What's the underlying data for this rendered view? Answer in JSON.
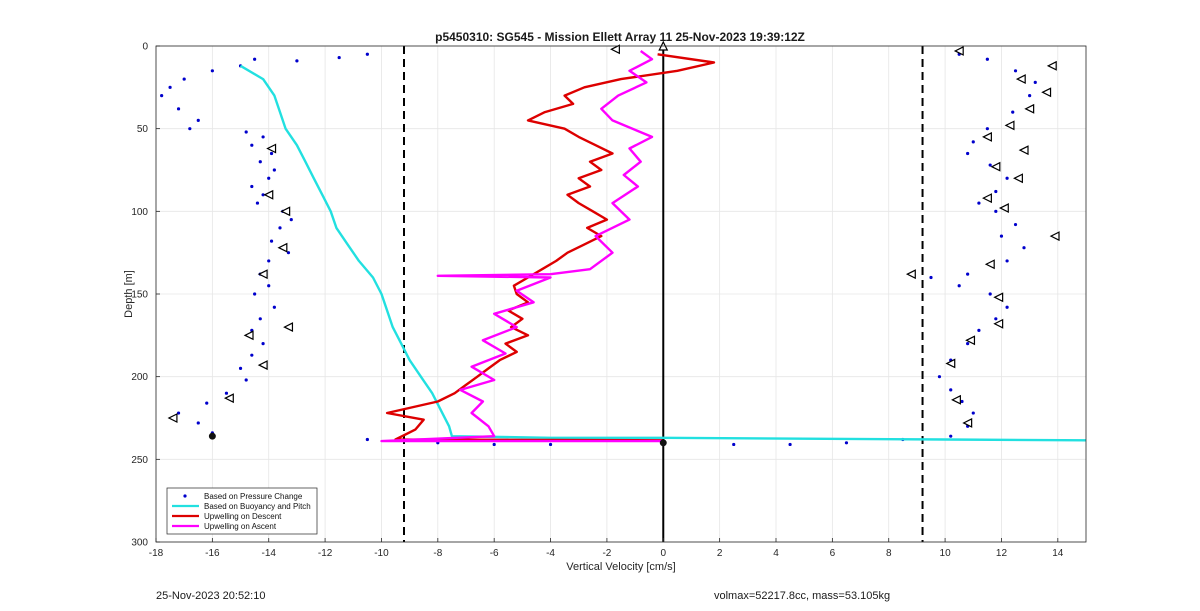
{
  "chart_data": {
    "type": "line",
    "title": "p5450310: SG545 - Mission Ellett Array 11 25-Nov-2023 19:39:12Z",
    "xlabel": "Vertical Velocity [cm/s]",
    "ylabel": "Depth [m]",
    "xlim": [
      -18,
      15
    ],
    "ylim": [
      0,
      300
    ],
    "y_reversed": true,
    "grid": true,
    "x_ticks": [
      "-18",
      "-16",
      "-14",
      "-12",
      "-10",
      "-8",
      "-6",
      "-4",
      "-2",
      "0",
      "2",
      "4",
      "6",
      "8",
      "10",
      "12",
      "14"
    ],
    "y_ticks": [
      "0",
      "50",
      "100",
      "150",
      "200",
      "250",
      "300"
    ],
    "legend_position": "bottom-left",
    "legend": [
      {
        "label": "Based on Pressure Change",
        "color": "#0000cc",
        "style": "dot"
      },
      {
        "label": "Based on Buoyancy and Pitch",
        "color": "#22e0e0",
        "style": "line"
      },
      {
        "label": "Upwelling on Descent",
        "color": "#dd0000",
        "style": "line"
      },
      {
        "label": "Upwelling on Ascent",
        "color": "#ff00ff",
        "style": "line"
      }
    ],
    "vlines": [
      {
        "x": -9.2,
        "style": "dashed",
        "color": "#000000"
      },
      {
        "x": 9.2,
        "style": "dashed",
        "color": "#000000"
      },
      {
        "x": 0,
        "style": "solid",
        "color": "#000000"
      }
    ],
    "series": [
      {
        "name": "Based on Pressure Change",
        "kind": "scatter",
        "color": "#0000cc",
        "points": [
          [
            -10.5,
            5
          ],
          [
            -11.5,
            7
          ],
          [
            -13,
            9
          ],
          [
            -14.5,
            8
          ],
          [
            -15,
            12
          ],
          [
            -16,
            15
          ],
          [
            -17,
            20
          ],
          [
            -17.5,
            25
          ],
          [
            -17.8,
            30
          ],
          [
            -17.2,
            38
          ],
          [
            -16.5,
            45
          ],
          [
            -16.8,
            50
          ],
          [
            -14.8,
            52
          ],
          [
            -14.2,
            55
          ],
          [
            -14.6,
            60
          ],
          [
            -13.9,
            65
          ],
          [
            -14.3,
            70
          ],
          [
            -13.8,
            75
          ],
          [
            -14.0,
            80
          ],
          [
            -14.6,
            85
          ],
          [
            -14.2,
            90
          ],
          [
            -14.4,
            95
          ],
          [
            -13.5,
            100
          ],
          [
            -13.2,
            105
          ],
          [
            -13.6,
            110
          ],
          [
            -13.9,
            118
          ],
          [
            -13.3,
            125
          ],
          [
            -14.0,
            130
          ],
          [
            -14.3,
            138
          ],
          [
            -14.0,
            145
          ],
          [
            -14.5,
            150
          ],
          [
            -13.8,
            158
          ],
          [
            -14.3,
            165
          ],
          [
            -14.6,
            172
          ],
          [
            -14.2,
            180
          ],
          [
            -14.6,
            187
          ],
          [
            -15.0,
            195
          ],
          [
            -14.8,
            202
          ],
          [
            -15.5,
            210
          ],
          [
            -16.2,
            216
          ],
          [
            -17.2,
            222
          ],
          [
            -16.5,
            228
          ],
          [
            -16.0,
            234
          ],
          [
            -10.5,
            238
          ],
          [
            -8.0,
            240
          ],
          [
            -6.0,
            241
          ],
          [
            -4.0,
            241
          ],
          [
            2.5,
            241
          ],
          [
            4.5,
            241
          ],
          [
            6.5,
            240
          ],
          [
            8.5,
            238
          ],
          [
            10.5,
            5
          ],
          [
            11.5,
            8
          ],
          [
            12.5,
            15
          ],
          [
            13.2,
            22
          ],
          [
            13.0,
            30
          ],
          [
            12.4,
            40
          ],
          [
            11.5,
            50
          ],
          [
            11.0,
            58
          ],
          [
            10.8,
            65
          ],
          [
            11.6,
            72
          ],
          [
            12.2,
            80
          ],
          [
            11.8,
            88
          ],
          [
            11.2,
            95
          ],
          [
            11.8,
            100
          ],
          [
            12.5,
            108
          ],
          [
            12.0,
            115
          ],
          [
            12.8,
            122
          ],
          [
            12.2,
            130
          ],
          [
            10.8,
            138
          ],
          [
            9.5,
            140
          ],
          [
            10.5,
            145
          ],
          [
            11.6,
            150
          ],
          [
            12.2,
            158
          ],
          [
            11.8,
            165
          ],
          [
            11.2,
            172
          ],
          [
            10.8,
            180
          ],
          [
            10.2,
            190
          ],
          [
            9.8,
            200
          ],
          [
            10.2,
            208
          ],
          [
            10.6,
            215
          ],
          [
            11.0,
            222
          ],
          [
            10.8,
            230
          ],
          [
            10.2,
            236
          ]
        ]
      },
      {
        "name": "Based on Buoyancy and Pitch",
        "kind": "line",
        "color": "#22e0e0",
        "points": [
          [
            -15,
            12
          ],
          [
            -14.2,
            20
          ],
          [
            -13.8,
            30
          ],
          [
            -13.6,
            40
          ],
          [
            -13.4,
            50
          ],
          [
            -13.0,
            60
          ],
          [
            -12.7,
            70
          ],
          [
            -12.4,
            80
          ],
          [
            -12.1,
            90
          ],
          [
            -11.8,
            100
          ],
          [
            -11.6,
            110
          ],
          [
            -11.2,
            120
          ],
          [
            -10.8,
            130
          ],
          [
            -10.3,
            140
          ],
          [
            -10.0,
            150
          ],
          [
            -9.8,
            160
          ],
          [
            -9.6,
            170
          ],
          [
            -9.3,
            180
          ],
          [
            -9.0,
            190
          ],
          [
            -8.6,
            200
          ],
          [
            -8.2,
            210
          ],
          [
            -7.9,
            220
          ],
          [
            -7.6,
            230
          ],
          [
            -7.5,
            236
          ],
          [
            -4,
            237
          ],
          [
            0,
            237
          ],
          [
            5,
            237.5
          ],
          [
            10,
            238
          ],
          [
            15,
            238.5
          ]
        ]
      },
      {
        "name": "Upwelling on Descent",
        "kind": "line",
        "color": "#dd0000",
        "points": [
          [
            -0.2,
            5
          ],
          [
            1.8,
            10
          ],
          [
            0.5,
            15
          ],
          [
            -1.5,
            20
          ],
          [
            -2.8,
            25
          ],
          [
            -3.5,
            30
          ],
          [
            -3.2,
            35
          ],
          [
            -4.2,
            40
          ],
          [
            -4.8,
            45
          ],
          [
            -3.5,
            50
          ],
          [
            -3.0,
            55
          ],
          [
            -2.4,
            60
          ],
          [
            -1.8,
            65
          ],
          [
            -2.6,
            70
          ],
          [
            -2.2,
            75
          ],
          [
            -3.0,
            80
          ],
          [
            -2.6,
            85
          ],
          [
            -3.4,
            90
          ],
          [
            -3.0,
            95
          ],
          [
            -2.5,
            100
          ],
          [
            -2.0,
            105
          ],
          [
            -2.7,
            110
          ],
          [
            -2.2,
            115
          ],
          [
            -2.8,
            120
          ],
          [
            -3.4,
            125
          ],
          [
            -3.8,
            130
          ],
          [
            -4.3,
            135
          ],
          [
            -4.8,
            140
          ],
          [
            -5.3,
            145
          ],
          [
            -5.2,
            150
          ],
          [
            -4.8,
            155
          ],
          [
            -5.5,
            160
          ],
          [
            -5.0,
            165
          ],
          [
            -5.4,
            170
          ],
          [
            -4.8,
            175
          ],
          [
            -5.6,
            180
          ],
          [
            -5.2,
            185
          ],
          [
            -5.8,
            190
          ],
          [
            -6.2,
            195
          ],
          [
            -6.6,
            200
          ],
          [
            -7.0,
            205
          ],
          [
            -7.4,
            210
          ],
          [
            -8.0,
            215
          ],
          [
            -9.8,
            222
          ],
          [
            -8.5,
            226
          ],
          [
            -8.8,
            232
          ],
          [
            -9.5,
            238
          ],
          [
            0,
            238.5
          ]
        ]
      },
      {
        "name": "Upwelling on Ascent",
        "kind": "line",
        "color": "#ff00ff",
        "points": [
          [
            -0.8,
            3
          ],
          [
            -0.4,
            8
          ],
          [
            -1.2,
            15
          ],
          [
            -0.6,
            22
          ],
          [
            -1.6,
            30
          ],
          [
            -2.2,
            38
          ],
          [
            -1.8,
            45
          ],
          [
            -0.4,
            55
          ],
          [
            -1.2,
            62
          ],
          [
            -0.8,
            70
          ],
          [
            -1.4,
            78
          ],
          [
            -0.9,
            85
          ],
          [
            -1.8,
            95
          ],
          [
            -1.2,
            105
          ],
          [
            -2.4,
            115
          ],
          [
            -1.8,
            125
          ],
          [
            -2.6,
            135
          ],
          [
            -4.0,
            138
          ],
          [
            -8.0,
            139
          ],
          [
            -4.0,
            140
          ],
          [
            -5.2,
            148
          ],
          [
            -4.6,
            155
          ],
          [
            -6.0,
            162
          ],
          [
            -5.2,
            170
          ],
          [
            -6.4,
            178
          ],
          [
            -5.6,
            186
          ],
          [
            -6.8,
            194
          ],
          [
            -6.0,
            202
          ],
          [
            -7.2,
            208
          ],
          [
            -6.4,
            215
          ],
          [
            -6.8,
            222
          ],
          [
            -6.2,
            230
          ],
          [
            -6.0,
            236
          ],
          [
            -10.0,
            239
          ],
          [
            0,
            239
          ]
        ]
      }
    ],
    "markers": [
      {
        "x": -1.7,
        "y": 2,
        "shape": "tri-left"
      },
      {
        "x": 0,
        "y": 0,
        "shape": "tri-up"
      },
      {
        "x": -13.9,
        "y": 62,
        "shape": "tri-left"
      },
      {
        "x": -14.0,
        "y": 90,
        "shape": "tri-left"
      },
      {
        "x": -13.4,
        "y": 100,
        "shape": "tri-left"
      },
      {
        "x": -13.5,
        "y": 122,
        "shape": "tri-left"
      },
      {
        "x": -14.2,
        "y": 138,
        "shape": "tri-left"
      },
      {
        "x": -13.3,
        "y": 170,
        "shape": "tri-left"
      },
      {
        "x": -14.7,
        "y": 175,
        "shape": "tri-left"
      },
      {
        "x": -14.2,
        "y": 193,
        "shape": "tri-left"
      },
      {
        "x": -15.4,
        "y": 213,
        "shape": "tri-left"
      },
      {
        "x": -17.4,
        "y": 225,
        "shape": "tri-left"
      },
      {
        "x": -16.0,
        "y": 236,
        "shape": "dot"
      },
      {
        "x": 10.5,
        "y": 3,
        "shape": "tri-left"
      },
      {
        "x": 13.8,
        "y": 12,
        "shape": "tri-left"
      },
      {
        "x": 12.7,
        "y": 20,
        "shape": "tri-left"
      },
      {
        "x": 13.6,
        "y": 28,
        "shape": "tri-left"
      },
      {
        "x": 13.0,
        "y": 38,
        "shape": "tri-left"
      },
      {
        "x": 12.3,
        "y": 48,
        "shape": "tri-left"
      },
      {
        "x": 11.5,
        "y": 55,
        "shape": "tri-left"
      },
      {
        "x": 12.8,
        "y": 63,
        "shape": "tri-left"
      },
      {
        "x": 11.8,
        "y": 73,
        "shape": "tri-left"
      },
      {
        "x": 12.6,
        "y": 80,
        "shape": "tri-left"
      },
      {
        "x": 11.5,
        "y": 92,
        "shape": "tri-left"
      },
      {
        "x": 12.1,
        "y": 98,
        "shape": "tri-left"
      },
      {
        "x": 13.9,
        "y": 115,
        "shape": "tri-left"
      },
      {
        "x": 11.6,
        "y": 132,
        "shape": "tri-left"
      },
      {
        "x": 8.8,
        "y": 138,
        "shape": "tri-left"
      },
      {
        "x": 11.9,
        "y": 152,
        "shape": "tri-left"
      },
      {
        "x": 11.9,
        "y": 168,
        "shape": "tri-left"
      },
      {
        "x": 10.9,
        "y": 178,
        "shape": "tri-left"
      },
      {
        "x": 10.2,
        "y": 192,
        "shape": "tri-left"
      },
      {
        "x": 10.4,
        "y": 214,
        "shape": "tri-left"
      },
      {
        "x": 10.8,
        "y": 228,
        "shape": "tri-left"
      },
      {
        "x": 0,
        "y": 240,
        "shape": "dot"
      }
    ]
  },
  "footer": {
    "timestamp": "25-Nov-2023 20:52:10",
    "info": "volmax=52217.8cc, mass=53.105kg"
  }
}
